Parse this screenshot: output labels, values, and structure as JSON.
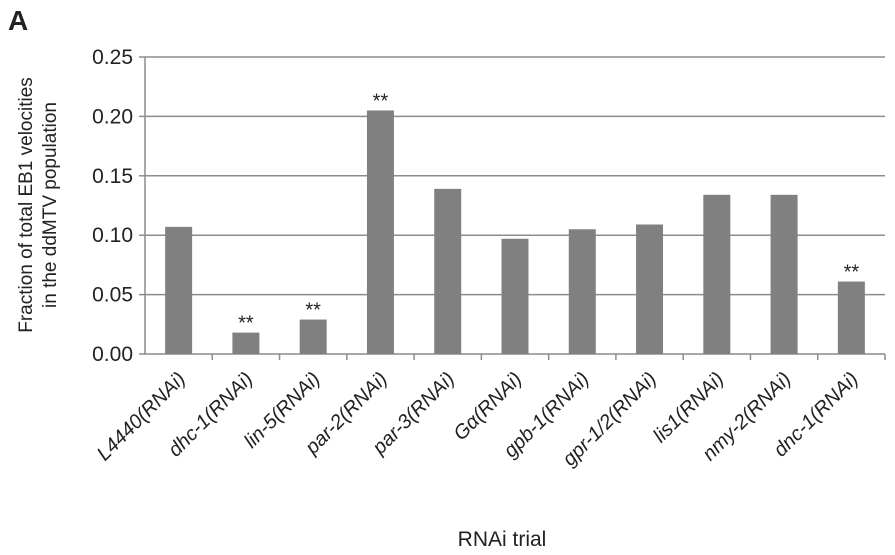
{
  "panel_label": "A",
  "chart_data": {
    "type": "bar",
    "categories": [
      "L4440(RNAi)",
      "dhc-1(RNAi)",
      "lin-5(RNAi)",
      "par-2(RNAi)",
      "par-3(RNAi)",
      "Gα(RNAi)",
      "gpb-1(RNAi)",
      "gpr-1/2(RNAi)",
      "lis1(RNAi)",
      "nmy-2(RNAi)",
      "dnc-1(RNAi)"
    ],
    "values": [
      0.107,
      0.018,
      0.029,
      0.205,
      0.139,
      0.097,
      0.105,
      0.109,
      0.134,
      0.134,
      0.061
    ],
    "annotations": [
      "",
      "**",
      "**",
      "**",
      "",
      "",
      "",
      "",
      "",
      "",
      "**"
    ],
    "ylabel_line1": "Fraction of total EB1 velocities",
    "ylabel_line2": "in the ddMTV population",
    "xlabel": "RNAi trial",
    "ylim": [
      0,
      0.25
    ],
    "yticks": [
      "0.00",
      "0.05",
      "0.10",
      "0.15",
      "0.20",
      "0.25"
    ],
    "grid": true,
    "bar_color": "#808080",
    "grid_color": "#8c8c8c"
  }
}
